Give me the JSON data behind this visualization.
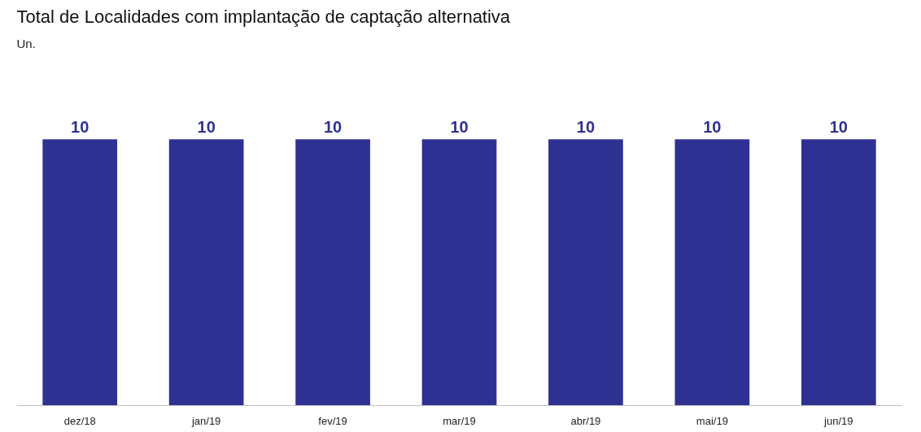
{
  "chart_data": {
    "type": "bar",
    "title": "Total de Localidades com implantação de captação alternativa",
    "subtitle": "Un.",
    "categories": [
      "dez/18",
      "jan/19",
      "fev/19",
      "mar/19",
      "abr/19",
      "mai/19",
      "jun/19"
    ],
    "values": [
      10,
      10,
      10,
      10,
      10,
      10,
      10
    ],
    "color": "#2e3192",
    "data_labels": true
  }
}
